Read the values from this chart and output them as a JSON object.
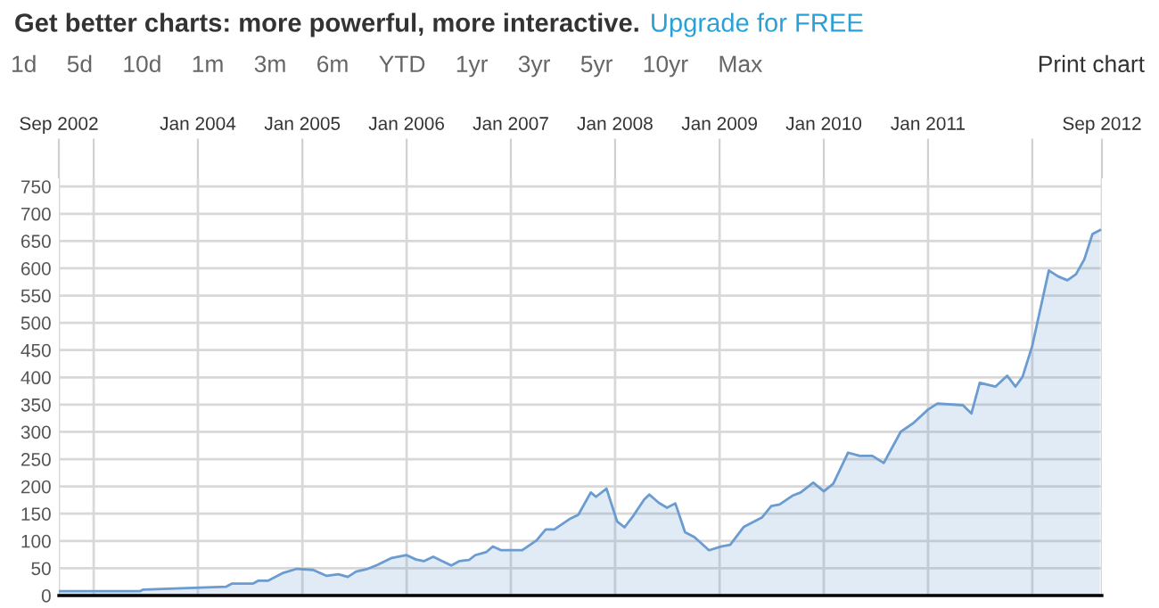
{
  "chart_data": {
    "type": "area",
    "title": "Get better charts: more powerful, more interactive.",
    "annotations": [
      "Upgrade for FREE",
      "1d",
      "5d",
      "10d",
      "1m",
      "3m",
      "6m",
      "YTD",
      "1yr",
      "3yr",
      "5yr",
      "10yr",
      "Max",
      "Print chart"
    ],
    "x": [
      "2002-09-02",
      "2003-06-13",
      "2003-06-24",
      "2004-04-08",
      "2004-04-30",
      "2004-07-12",
      "2004-07-30",
      "2004-09-02",
      "2004-10-23",
      "2004-12-13",
      "2005-02-07",
      "2005-03-27",
      "2005-05-07",
      "2005-06-09",
      "2005-07-08",
      "2005-08-18",
      "2005-09-20",
      "2005-11-10",
      "2006-01-01",
      "2006-02-03",
      "2006-03-02",
      "2006-04-04",
      "2006-06-06",
      "2006-07-04",
      "2006-08-07",
      "2006-08-29",
      "2006-10-08",
      "2006-10-30",
      "2006-11-28",
      "2007-02-10",
      "2007-04-01",
      "2007-05-03",
      "2007-06-02",
      "2007-07-25",
      "2007-08-25",
      "2007-10-08",
      "2007-10-26",
      "2007-12-02",
      "2008-01-08",
      "2008-02-03",
      "2008-03-06",
      "2008-04-12",
      "2008-04-30",
      "2008-06-02",
      "2008-07-01",
      "2008-07-30",
      "2008-09-02",
      "2008-10-05",
      "2008-11-25",
      "2009-01-08",
      "2009-02-07",
      "2009-03-27",
      "2009-05-29",
      "2009-07-01",
      "2009-07-30",
      "2009-09-13",
      "2009-10-12",
      "2009-11-25",
      "2010-01-01",
      "2010-02-03",
      "2010-03-27",
      "2010-05-07",
      "2010-06-20",
      "2010-07-30",
      "2010-09-27",
      "2010-11-10",
      "2011-01-01",
      "2011-02-03",
      "2011-05-03",
      "2011-06-02",
      "2011-07-01",
      "2011-08-25",
      "2011-10-05",
      "2011-11-03",
      "2011-11-28",
      "2012-01-01",
      "2012-02-28",
      "2012-04-01",
      "2012-05-03",
      "2012-06-02",
      "2012-07-01",
      "2012-07-30",
      "2012-08-25"
    ],
    "series": [
      {
        "color": "#6a9bd1",
        "values": [
          8,
          8,
          11,
          16,
          22,
          22,
          27,
          27,
          41,
          49,
          47,
          36,
          39,
          34,
          44,
          49,
          56,
          69,
          74,
          66,
          63,
          71,
          55,
          63,
          65,
          74,
          80,
          90,
          83,
          83,
          101,
          121,
          121,
          140,
          148,
          189,
          181,
          196,
          136,
          125,
          147,
          176,
          185,
          170,
          161,
          169,
          116,
          107,
          83,
          90,
          93,
          126,
          143,
          164,
          167,
          183,
          189,
          207,
          191,
          205,
          262,
          256,
          256,
          243,
          300,
          316,
          341,
          352,
          349,
          334,
          390,
          383,
          403,
          383,
          401,
          458,
          596,
          585,
          578,
          589,
          616,
          663,
          670
        ]
      }
    ],
    "xlim": [
      "2002-09-01",
      "2012-09-01"
    ],
    "ylim": [
      0,
      765
    ],
    "xticks": [
      {
        "value": "2002-09-01",
        "label": "Sep 2002"
      },
      {
        "value": "2003-01-01",
        "label": null
      },
      {
        "value": "2004-01-01",
        "label": "Jan 2004"
      },
      {
        "value": "2005-01-01",
        "label": "Jan 2005"
      },
      {
        "value": "2006-01-01",
        "label": "Jan 2006"
      },
      {
        "value": "2007-01-01",
        "label": "Jan 2007"
      },
      {
        "value": "2008-01-01",
        "label": "Jan 2008"
      },
      {
        "value": "2009-01-01",
        "label": "Jan 2009"
      },
      {
        "value": "2010-01-01",
        "label": "Jan 2010"
      },
      {
        "value": "2011-01-01",
        "label": "Jan 2011"
      },
      {
        "value": "2012-01-01",
        "label": null
      },
      {
        "value": "2012-09-01",
        "label": "Sep 2012"
      }
    ],
    "yticks": [
      0,
      50,
      100,
      150,
      200,
      250,
      300,
      350,
      400,
      450,
      500,
      550,
      600,
      650,
      700,
      750
    ],
    "grid": true
  }
}
